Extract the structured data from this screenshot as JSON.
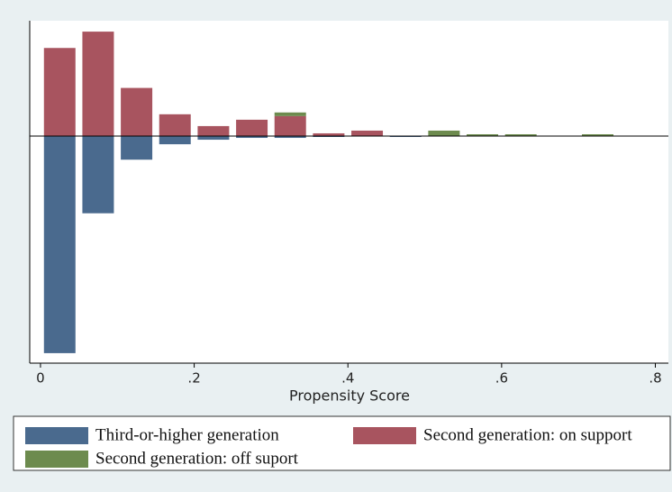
{
  "chart_data": {
    "type": "bar",
    "x_label": "Propensity Score",
    "x": [
      0.025,
      0.075,
      0.125,
      0.175,
      0.225,
      0.275,
      0.325,
      0.375,
      0.425,
      0.475,
      0.525,
      0.575,
      0.625,
      0.675,
      0.725
    ],
    "series": [
      {
        "name": "Third-or-higher generation",
        "color": "#4a6a8e",
        "values": [
          -239,
          -85,
          -26,
          -9,
          -4,
          -2,
          -2,
          -1,
          0,
          -1,
          0,
          0,
          0,
          0,
          0
        ]
      },
      {
        "name": "Second generation: on support",
        "color": "#a8545f",
        "values": [
          97,
          115,
          53,
          24,
          11,
          18,
          22,
          3,
          6,
          0,
          0,
          0,
          0,
          0,
          0
        ]
      },
      {
        "name": "Second generation: off suport",
        "color": "#6d8b4e",
        "values": [
          0,
          0,
          0,
          0,
          0,
          0,
          4,
          0,
          0,
          0,
          6,
          2,
          2,
          0,
          2
        ]
      }
    ],
    "stacked": true,
    "xlim": [
      -0.014,
      0.817
    ],
    "xticks": [
      0,
      {
        "value": 0.2,
        "label": ".2"
      },
      {
        "value": 0.4,
        "label": ".4"
      },
      {
        "value": 0.6,
        "label": ".6"
      },
      {
        "value": 0.8,
        "label": ".8"
      }
    ],
    "ylim": [
      -250,
      127
    ]
  }
}
